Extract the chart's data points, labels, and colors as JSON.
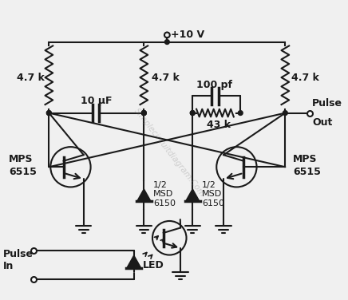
{
  "bg_color": "#f0f0f0",
  "line_color": "#1a1a1a",
  "watermark": "Simplecircuitdiagram.Com",
  "components": {
    "vcc_label": "+10 V",
    "r1_label": "4.7 k",
    "r2_label": "4.7 k",
    "r3_label": "4.7 k",
    "c1_label": "10 μF",
    "c2_label": "100 pf",
    "r4_label": "43 k",
    "q1_label1": "MPS",
    "q1_label2": "6515",
    "q2_label1": "MPS",
    "q2_label2": "6515",
    "d1_label1": "1/2",
    "d1_label2": "MSD",
    "d1_label3": "6150",
    "d2_label1": "1/2",
    "d2_label2": "MSD",
    "d2_label3": "6150",
    "led_label": "LED",
    "pulse_in1": "Pulse",
    "pulse_in2": "In",
    "pulse_out1": "Pulse",
    "pulse_out2": "Out"
  }
}
